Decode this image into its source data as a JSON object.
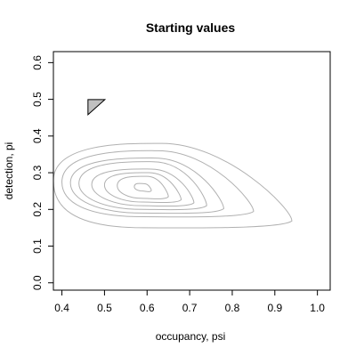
{
  "chart_data": {
    "type": "contour",
    "title": "Starting values",
    "xlabel": "occupancy, psi",
    "ylabel": "detection, pi",
    "xlim": [
      0.38,
      1.03
    ],
    "ylim": [
      -0.02,
      0.63
    ],
    "xticks": [
      0.4,
      0.5,
      0.6,
      0.7,
      0.8,
      0.9,
      1.0
    ],
    "xtick_labels": [
      "0.4",
      "0.5",
      "0.6",
      "0.7",
      "0.8",
      "0.9",
      "1.0"
    ],
    "yticks": [
      0.0,
      0.1,
      0.2,
      0.3,
      0.4,
      0.5,
      0.6
    ],
    "ytick_labels": [
      "0.0",
      "0.1",
      "0.2",
      "0.3",
      "0.4",
      "0.5",
      "0.6"
    ],
    "grid": false,
    "contour_center": {
      "psi": 0.59,
      "pi": 0.26
    },
    "contour_levels": [
      {
        "psi": [
          0.57,
          0.61
        ],
        "pi": [
          0.25,
          0.27
        ]
      },
      {
        "psi": [
          0.53,
          0.65
        ],
        "pi": [
          0.23,
          0.29
        ]
      },
      {
        "psi": [
          0.5,
          0.68
        ],
        "pi": [
          0.22,
          0.3
        ]
      },
      {
        "psi": [
          0.47,
          0.71
        ],
        "pi": [
          0.21,
          0.31
        ]
      },
      {
        "psi": [
          0.44,
          0.74
        ],
        "pi": [
          0.2,
          0.33
        ]
      },
      {
        "psi": [
          0.42,
          0.78
        ],
        "pi": [
          0.19,
          0.34
        ]
      },
      {
        "psi": [
          0.4,
          0.85
        ],
        "pi": [
          0.18,
          0.36
        ]
      },
      {
        "psi": [
          0.38,
          0.94
        ],
        "pi": [
          0.15,
          0.38
        ]
      }
    ],
    "starting_value": {
      "psi": 0.48,
      "pi": 0.48,
      "marker": "filled-triangle"
    },
    "colors": {
      "contour": "#b0b0b0",
      "axes": "#000000",
      "marker_fill": "#c0c0c0"
    }
  }
}
